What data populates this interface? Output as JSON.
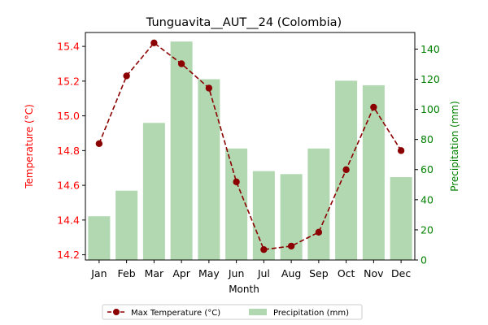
{
  "chart_data": {
    "type": "bar+line",
    "title": "Tunguavita__AUT__24 (Colombia)",
    "xlabel": "Month",
    "categories": [
      "Jan",
      "Feb",
      "Mar",
      "Apr",
      "May",
      "Jun",
      "Jul",
      "Aug",
      "Sep",
      "Oct",
      "Nov",
      "Dec"
    ],
    "y_left": {
      "label": "Temperature (°C)",
      "color": "#ff0000",
      "ylim": [
        14.17,
        15.48
      ],
      "ticks": [
        14.2,
        14.4,
        14.6,
        14.8,
        15.0,
        15.2,
        15.4
      ],
      "tick_labels": [
        "14.2",
        "14.4",
        "14.6",
        "14.8",
        "15.0",
        "15.2",
        "15.4"
      ]
    },
    "y_right": {
      "label": "Precipitation (mm)",
      "color": "#008000",
      "ylim": [
        0,
        151
      ],
      "ticks": [
        0,
        20,
        40,
        60,
        80,
        100,
        120,
        140
      ],
      "tick_labels": [
        "0",
        "20",
        "40",
        "60",
        "80",
        "100",
        "120",
        "140"
      ]
    },
    "series": [
      {
        "name": "Max Temperature (°C)",
        "type": "line",
        "axis": "left",
        "color": "#8b0000",
        "style": "dashed",
        "marker": "circle",
        "values": [
          14.84,
          15.23,
          15.42,
          15.3,
          15.16,
          14.62,
          14.23,
          14.25,
          14.33,
          14.69,
          15.05,
          14.8
        ]
      },
      {
        "name": "Precipitation (mm)",
        "type": "bar",
        "axis": "right",
        "color": "#b1d8b1",
        "values": [
          29,
          46,
          91,
          145,
          120,
          74,
          59,
          57,
          74,
          119,
          116,
          55
        ]
      }
    ],
    "legend": {
      "placement": "bottom-center",
      "entries": [
        "Max Temperature (°C)",
        "Precipitation (mm)"
      ]
    },
    "grid": false
  }
}
